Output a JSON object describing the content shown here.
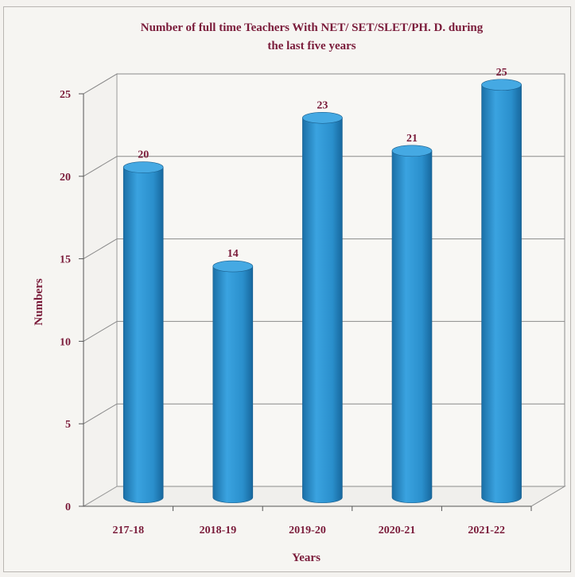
{
  "chart_data": {
    "type": "bar",
    "title_lines": [
      "Number of full time Teachers With NET/ SET/SLET/PH. D. during",
      "the last five years"
    ],
    "xlabel": "Years",
    "ylabel": "Numbers",
    "categories": [
      "217-18",
      "2018-19",
      "2019-20",
      "2020-21",
      "2021-22"
    ],
    "values": [
      20,
      14,
      23,
      21,
      25
    ],
    "ylim": [
      0,
      25
    ],
    "yticks": [
      0,
      5,
      10,
      15,
      20,
      25
    ],
    "grid": true,
    "legend": "none",
    "bar_color": "#2a8fcc",
    "text_color": "#7a1b3a"
  }
}
